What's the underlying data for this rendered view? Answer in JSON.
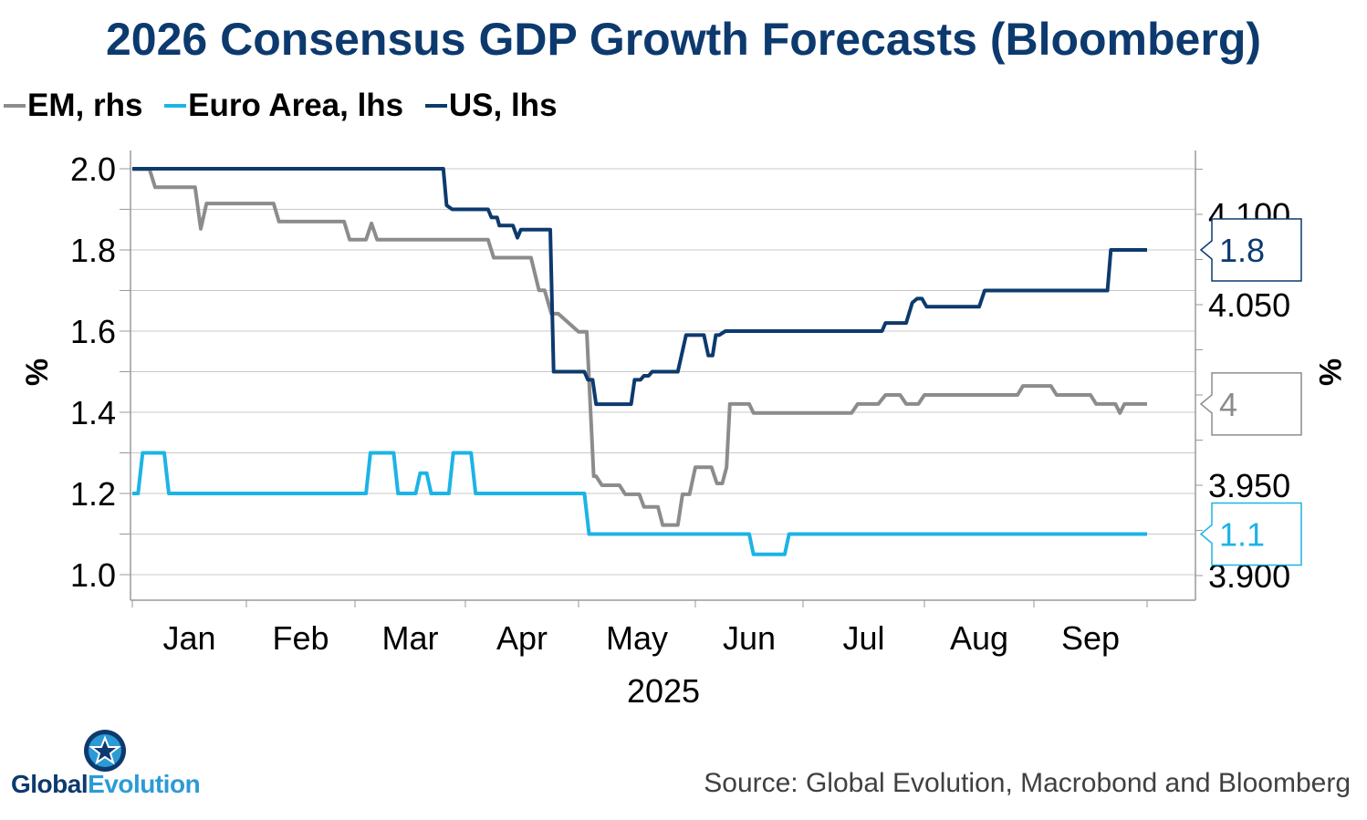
{
  "title": "2026 Consensus GDP Growth Forecasts (Bloomberg)",
  "legend": [
    {
      "label": "EM, rhs",
      "color": "#8c8c8c"
    },
    {
      "label": "Euro Area, lhs",
      "color": "#1bb4e6"
    },
    {
      "label": "US, lhs",
      "color": "#0d3a6e"
    }
  ],
  "source": "Source: Global Evolution, Macrobond and Bloomberg",
  "logo": {
    "part1": "Global",
    "part2": "Evolution"
  },
  "chart_data": {
    "type": "line",
    "title": "2026 Consensus GDP Growth Forecasts (Bloomberg)",
    "xlabel": "2025",
    "x_unit": "month position (0 = Jan 1, 9 = Oct 1)",
    "x_range": [
      0,
      9.2
    ],
    "months": [
      "Jan",
      "Feb",
      "Mar",
      "Apr",
      "May",
      "Jun",
      "Jul",
      "Aug",
      "Sep"
    ],
    "y_left": {
      "label": "%",
      "range": [
        0.95,
        2.0
      ],
      "ticks": [
        "1.0",
        "1.2",
        "1.4",
        "1.6",
        "1.8",
        "2.0"
      ]
    },
    "y_right": {
      "label": "%",
      "range": [
        3.87,
        4.13
      ],
      "ticks": [
        "3.900",
        "3.950",
        "4.050",
        "4.100"
      ]
    },
    "series": [
      {
        "name": "US, lhs",
        "axis": "left",
        "color": "#0d3a6e",
        "last_label": "1.8",
        "points": [
          [
            0,
            2.0
          ],
          [
            2.8,
            2.0
          ],
          [
            2.83,
            1.91
          ],
          [
            2.88,
            1.9
          ],
          [
            3.2,
            1.9
          ],
          [
            3.23,
            1.88
          ],
          [
            3.28,
            1.88
          ],
          [
            3.3,
            1.86
          ],
          [
            3.42,
            1.86
          ],
          [
            3.46,
            1.83
          ],
          [
            3.49,
            1.85
          ],
          [
            3.75,
            1.85
          ],
          [
            3.78,
            1.5
          ],
          [
            4.05,
            1.5
          ],
          [
            4.08,
            1.48
          ],
          [
            4.12,
            1.48
          ],
          [
            4.15,
            1.42
          ],
          [
            4.45,
            1.42
          ],
          [
            4.48,
            1.48
          ],
          [
            4.53,
            1.48
          ],
          [
            4.56,
            1.49
          ],
          [
            4.6,
            1.49
          ],
          [
            4.63,
            1.5
          ],
          [
            4.85,
            1.5
          ],
          [
            4.92,
            1.59
          ],
          [
            5.08,
            1.59
          ],
          [
            5.12,
            1.54
          ],
          [
            5.16,
            1.54
          ],
          [
            5.19,
            1.59
          ],
          [
            5.22,
            1.59
          ],
          [
            5.28,
            1.6
          ],
          [
            6.65,
            1.6
          ],
          [
            6.68,
            1.62
          ],
          [
            6.85,
            1.62
          ],
          [
            6.9,
            1.67
          ],
          [
            6.94,
            1.68
          ],
          [
            6.98,
            1.68
          ],
          [
            7.02,
            1.66
          ],
          [
            7.5,
            1.66
          ],
          [
            7.55,
            1.7
          ],
          [
            8.65,
            1.7
          ],
          [
            8.68,
            1.8
          ],
          [
            9.0,
            1.8
          ]
        ]
      },
      {
        "name": "Euro Area, lhs",
        "axis": "left",
        "color": "#1bb4e6",
        "last_label": "1.1",
        "points": [
          [
            0,
            1.2
          ],
          [
            0.05,
            1.2
          ],
          [
            0.09,
            1.3
          ],
          [
            0.28,
            1.3
          ],
          [
            0.32,
            1.2
          ],
          [
            2.1,
            1.2
          ],
          [
            2.14,
            1.3
          ],
          [
            2.35,
            1.3
          ],
          [
            2.39,
            1.2
          ],
          [
            2.55,
            1.2
          ],
          [
            2.59,
            1.25
          ],
          [
            2.65,
            1.25
          ],
          [
            2.69,
            1.2
          ],
          [
            2.85,
            1.2
          ],
          [
            2.89,
            1.3
          ],
          [
            3.05,
            1.3
          ],
          [
            3.09,
            1.2
          ],
          [
            4.05,
            1.2
          ],
          [
            4.09,
            1.1
          ],
          [
            5.5,
            1.1
          ],
          [
            5.54,
            1.05
          ],
          [
            5.83,
            1.05
          ],
          [
            5.87,
            1.1
          ],
          [
            9.0,
            1.1
          ]
        ]
      },
      {
        "name": "EM, rhs",
        "axis": "right",
        "color": "#8c8c8c",
        "last_label": "4",
        "points": [
          [
            0,
            4.125
          ],
          [
            0.15,
            4.125
          ],
          [
            0.2,
            4.115
          ],
          [
            0.55,
            4.115
          ],
          [
            0.6,
            4.092
          ],
          [
            0.65,
            4.106
          ],
          [
            1.25,
            4.106
          ],
          [
            1.3,
            4.096
          ],
          [
            1.9,
            4.096
          ],
          [
            1.95,
            4.086
          ],
          [
            2.1,
            4.086
          ],
          [
            2.15,
            4.095
          ],
          [
            2.2,
            4.086
          ],
          [
            3.2,
            4.086
          ],
          [
            3.25,
            4.076
          ],
          [
            3.58,
            4.076
          ],
          [
            3.65,
            4.058
          ],
          [
            3.7,
            4.058
          ],
          [
            3.76,
            4.045
          ],
          [
            3.82,
            4.045
          ],
          [
            4.0,
            4.035
          ],
          [
            4.07,
            4.035
          ],
          [
            4.13,
            3.955
          ],
          [
            4.15,
            3.955
          ],
          [
            4.2,
            3.95
          ],
          [
            4.35,
            3.95
          ],
          [
            4.4,
            3.945
          ],
          [
            4.52,
            3.945
          ],
          [
            4.56,
            3.938
          ],
          [
            4.68,
            3.938
          ],
          [
            4.72,
            3.928
          ],
          [
            4.85,
            3.928
          ],
          [
            4.89,
            3.945
          ],
          [
            4.95,
            3.945
          ],
          [
            5.0,
            3.96
          ],
          [
            5.15,
            3.96
          ],
          [
            5.2,
            3.951
          ],
          [
            5.25,
            3.951
          ],
          [
            5.29,
            3.96
          ],
          [
            5.32,
            3.995
          ],
          [
            5.5,
            3.995
          ],
          [
            5.54,
            3.99
          ],
          [
            6.4,
            3.99
          ],
          [
            6.45,
            3.995
          ],
          [
            6.62,
            3.995
          ],
          [
            6.68,
            4.0
          ],
          [
            6.8,
            4.0
          ],
          [
            6.85,
            3.995
          ],
          [
            6.95,
            3.995
          ],
          [
            7.0,
            4.0
          ],
          [
            7.85,
            4.0
          ],
          [
            7.9,
            4.005
          ],
          [
            8.15,
            4.005
          ],
          [
            8.2,
            4.0
          ],
          [
            8.5,
            4.0
          ],
          [
            8.55,
            3.995
          ],
          [
            8.72,
            3.995
          ],
          [
            8.76,
            3.99
          ],
          [
            8.8,
            3.995
          ],
          [
            9.0,
            3.995
          ]
        ]
      }
    ]
  }
}
